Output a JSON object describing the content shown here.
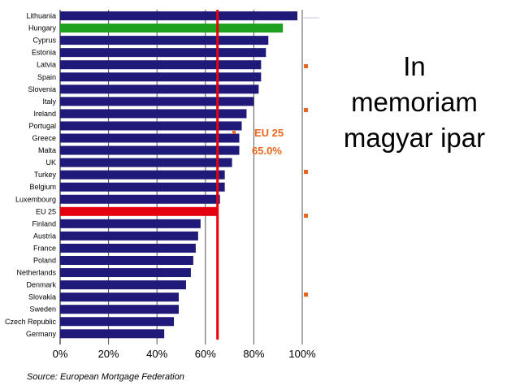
{
  "chart_data": {
    "type": "bar",
    "orientation": "horizontal",
    "categories": [
      "Lithuania",
      "Hungary",
      "Cyprus",
      "Estonia",
      "Latvia",
      "Spain",
      "Slovenia",
      "Italy",
      "Ireland",
      "Portugal",
      "Greece",
      "Malta",
      "UK",
      "Turkey",
      "Belgium",
      "Luxembourg",
      "EU 25",
      "Finland",
      "Austria",
      "France",
      "Poland",
      "Netherlands",
      "Denmark",
      "Slovakia",
      "Sweden",
      "Czech Republic",
      "Germany"
    ],
    "values": [
      98,
      92,
      86,
      85,
      83,
      83,
      82,
      80,
      77,
      75,
      74,
      74,
      71,
      68,
      68,
      66,
      65,
      58,
      57,
      56,
      55,
      54,
      52,
      49,
      49,
      47,
      43
    ],
    "xlim": [
      0,
      100
    ],
    "xticks": [
      "0%",
      "20%",
      "40%",
      "60%",
      "80%",
      "100%"
    ],
    "grid": true,
    "reference_line": {
      "value": 65,
      "label_line1": "EU 25",
      "label_line2": "65.0%",
      "color": "#e8000b"
    },
    "colors": {
      "default": "#1f1a7a",
      "Hungary": "#1ea11e",
      "EU 25": "#e3000f",
      "annotation": "#e8671c"
    },
    "source": "Source: European Mortgage Federation"
  },
  "side_text": {
    "line1": "In",
    "line2": "memoriam",
    "line3": "magyar ipar"
  }
}
